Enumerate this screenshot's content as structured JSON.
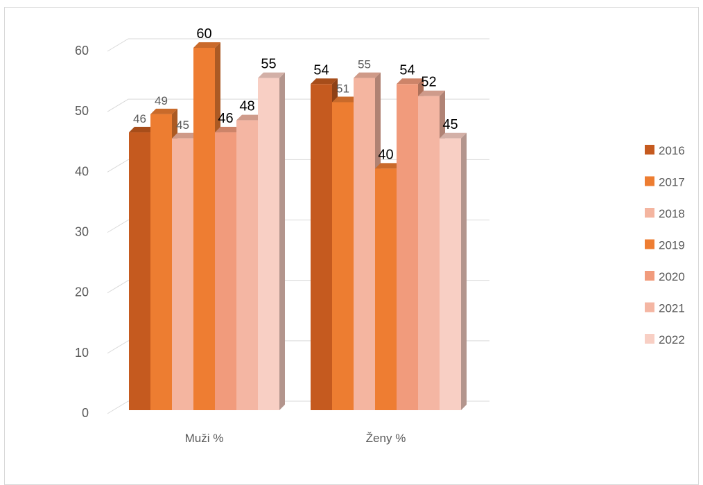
{
  "chart_data": {
    "type": "bar",
    "style": "3d-clustered-column",
    "categories": [
      "Muži %",
      "Ženy %"
    ],
    "series": [
      {
        "name": "2016",
        "values": [
          46,
          54
        ],
        "color": "#C55A1F"
      },
      {
        "name": "2017",
        "values": [
          49,
          51
        ],
        "color": "#ED7D31"
      },
      {
        "name": "2018",
        "values": [
          45,
          55
        ],
        "color": "#F4B5A0"
      },
      {
        "name": "2019",
        "values": [
          60,
          40
        ],
        "color": "#EE7D32"
      },
      {
        "name": "2020",
        "values": [
          46,
          54
        ],
        "color": "#F19B7C"
      },
      {
        "name": "2021",
        "values": [
          48,
          52
        ],
        "color": "#F4B6A3"
      },
      {
        "name": "2022",
        "values": [
          55,
          45
        ],
        "color": "#F8CFC4"
      }
    ],
    "data_labels": [
      [
        "46",
        "54"
      ],
      [
        "49",
        "51"
      ],
      [
        "45",
        "55"
      ],
      [
        "60",
        "40"
      ],
      [
        "46",
        "54"
      ],
      [
        "48",
        "52"
      ],
      [
        "55",
        "45"
      ]
    ],
    "yticks": [
      "0",
      "10",
      "20",
      "30",
      "40",
      "50",
      "60"
    ],
    "ylim": [
      0,
      60
    ],
    "legend_position": "right",
    "grid": true
  }
}
